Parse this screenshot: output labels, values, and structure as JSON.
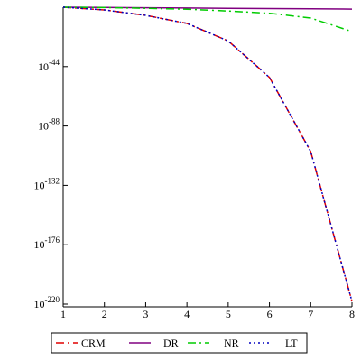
{
  "chart_data": {
    "type": "line",
    "title": "",
    "xlabel": "",
    "ylabel": "",
    "y_scale": "log10",
    "xlim": [
      1,
      8
    ],
    "ylim_exponent": [
      -222,
      0
    ],
    "x": [
      1,
      2,
      3,
      4,
      5,
      6,
      7,
      8
    ],
    "x_ticks": [
      "1",
      "2",
      "3",
      "4",
      "5",
      "6",
      "7",
      "8"
    ],
    "y_ticks": [
      {
        "base": "10",
        "exp": "-44",
        "value_exponent": -44
      },
      {
        "base": "10",
        "exp": "-88",
        "value_exponent": -88
      },
      {
        "base": "10",
        "exp": "-132",
        "value_exponent": -132
      },
      {
        "base": "10",
        "exp": "-176",
        "value_exponent": -176
      },
      {
        "base": "10",
        "exp": "-220",
        "value_exponent": -220
      }
    ],
    "grid": false,
    "legend_position": "bottom",
    "series": [
      {
        "name": "CRM",
        "color": "#e00000",
        "dash": "dash-dot",
        "exponents": [
          0,
          -2,
          -6,
          -12,
          -25,
          -52,
          -107,
          -218
        ]
      },
      {
        "name": "DR",
        "color": "#800080",
        "dash": "solid",
        "exponents": [
          0,
          -0.2,
          -0.4,
          -0.6,
          -0.8,
          -1,
          -1.2,
          -1.4
        ]
      },
      {
        "name": "NR",
        "color": "#00cc00",
        "dash": "dash-dot",
        "exponents": [
          0,
          -0.3,
          -0.8,
          -1.5,
          -2.8,
          -4.5,
          -8,
          -18
        ]
      },
      {
        "name": "LT",
        "color": "#0000c0",
        "dash": "dotted",
        "exponents": [
          0,
          -2,
          -6,
          -12,
          -25,
          -52,
          -107,
          -218
        ]
      }
    ]
  }
}
